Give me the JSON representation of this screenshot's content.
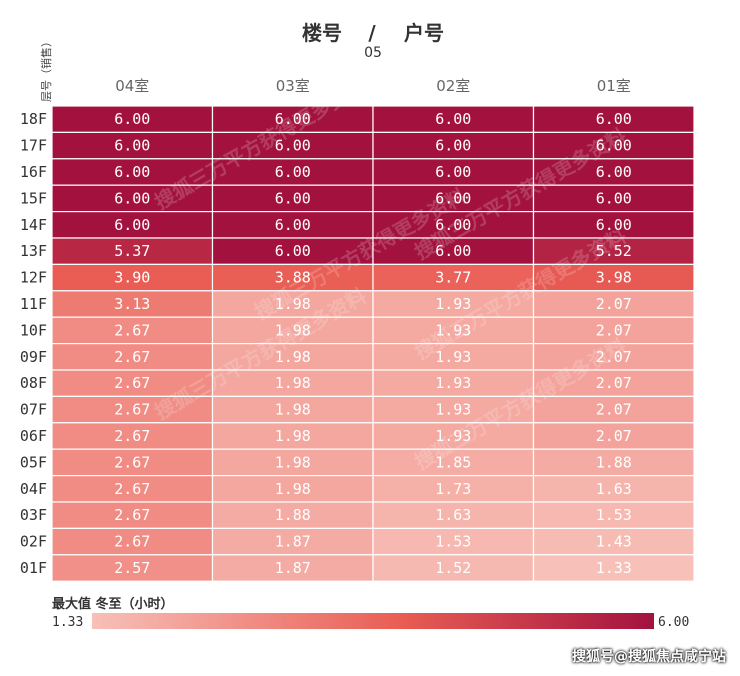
{
  "header": {
    "title_left": "楼号",
    "separator": "/",
    "title_right": "户号",
    "building": "05"
  },
  "axis": {
    "row_axis_label": "层号（销售）"
  },
  "legend": {
    "title": "最大值 冬至（小时）",
    "min_label": "1.33",
    "max_label": "6.00",
    "min_color": "#f7c0b8",
    "mid_color": "#e95d54",
    "max_color": "#a3123f"
  },
  "watermark": {
    "text": "搜狐三万平方获得更多资料",
    "repeat": [
      "搜狐三万平方获得更多资料",
      "搜狐三万平方获得更多资料",
      "搜狐三万平方获得更多资料",
      "搜狐三万平方获得更多资料",
      "搜狐三万平方获得更多资料",
      "搜狐三万平方获得更多资料"
    ]
  },
  "footer": {
    "text": "搜狐号@搜狐焦点咸宁站"
  },
  "chart_data": {
    "type": "heatmap",
    "title": "楼号 / 户号",
    "subtitle": "05",
    "xlabel": "",
    "ylabel": "层号（销售）",
    "columns": [
      "04室",
      "03室",
      "02室",
      "01室"
    ],
    "rows": [
      "18F",
      "17F",
      "16F",
      "15F",
      "14F",
      "13F",
      "12F",
      "11F",
      "10F",
      "09F",
      "08F",
      "07F",
      "06F",
      "05F",
      "04F",
      "03F",
      "02F",
      "01F"
    ],
    "values": [
      [
        6.0,
        6.0,
        6.0,
        6.0
      ],
      [
        6.0,
        6.0,
        6.0,
        6.0
      ],
      [
        6.0,
        6.0,
        6.0,
        6.0
      ],
      [
        6.0,
        6.0,
        6.0,
        6.0
      ],
      [
        6.0,
        6.0,
        6.0,
        6.0
      ],
      [
        5.37,
        6.0,
        6.0,
        5.52
      ],
      [
        3.9,
        3.88,
        3.77,
        3.98
      ],
      [
        3.13,
        1.98,
        1.93,
        2.07
      ],
      [
        2.67,
        1.98,
        1.93,
        2.07
      ],
      [
        2.67,
        1.98,
        1.93,
        2.07
      ],
      [
        2.67,
        1.98,
        1.93,
        2.07
      ],
      [
        2.67,
        1.98,
        1.93,
        2.07
      ],
      [
        2.67,
        1.98,
        1.93,
        2.07
      ],
      [
        2.67,
        1.98,
        1.85,
        1.88
      ],
      [
        2.67,
        1.98,
        1.73,
        1.63
      ],
      [
        2.67,
        1.88,
        1.63,
        1.53
      ],
      [
        2.67,
        1.87,
        1.53,
        1.43
      ],
      [
        2.57,
        1.87,
        1.52,
        1.33
      ]
    ],
    "labels": [
      [
        "6.00",
        "6.00",
        "6.00",
        "6.00"
      ],
      [
        "6.00",
        "6.00",
        "6.00",
        "6.00"
      ],
      [
        "6.00",
        "6.00",
        "6.00",
        "6.00"
      ],
      [
        "6.00",
        "6.00",
        "6.00",
        "6.00"
      ],
      [
        "6.00",
        "6.00",
        "6.00",
        "6.00"
      ],
      [
        "5.37",
        "6.00",
        "6.00",
        "5.52"
      ],
      [
        "3.90",
        "3.88",
        "3.77",
        "3.98"
      ],
      [
        "3.13",
        "1.98",
        "1.93",
        "2.07"
      ],
      [
        "2.67",
        "1.98",
        "1.93",
        "2.07"
      ],
      [
        "2.67",
        "1.98",
        "1.93",
        "2.07"
      ],
      [
        "2.67",
        "1.98",
        "1.93",
        "2.07"
      ],
      [
        "2.67",
        "1.98",
        "1.93",
        "2.07"
      ],
      [
        "2.67",
        "1.98",
        "1.93",
        "2.07"
      ],
      [
        "2.67",
        "1.98",
        "1.85",
        "1.88"
      ],
      [
        "2.67",
        "1.98",
        "1.73",
        "1.63"
      ],
      [
        "2.67",
        "1.88",
        "1.63",
        "1.53"
      ],
      [
        "2.67",
        "1.87",
        "1.53",
        "1.43"
      ],
      [
        "2.57",
        "1.87",
        "1.52",
        "1.33"
      ]
    ],
    "color_range": [
      1.33,
      6.0
    ],
    "legend_placement": "bottom",
    "grid": true
  }
}
